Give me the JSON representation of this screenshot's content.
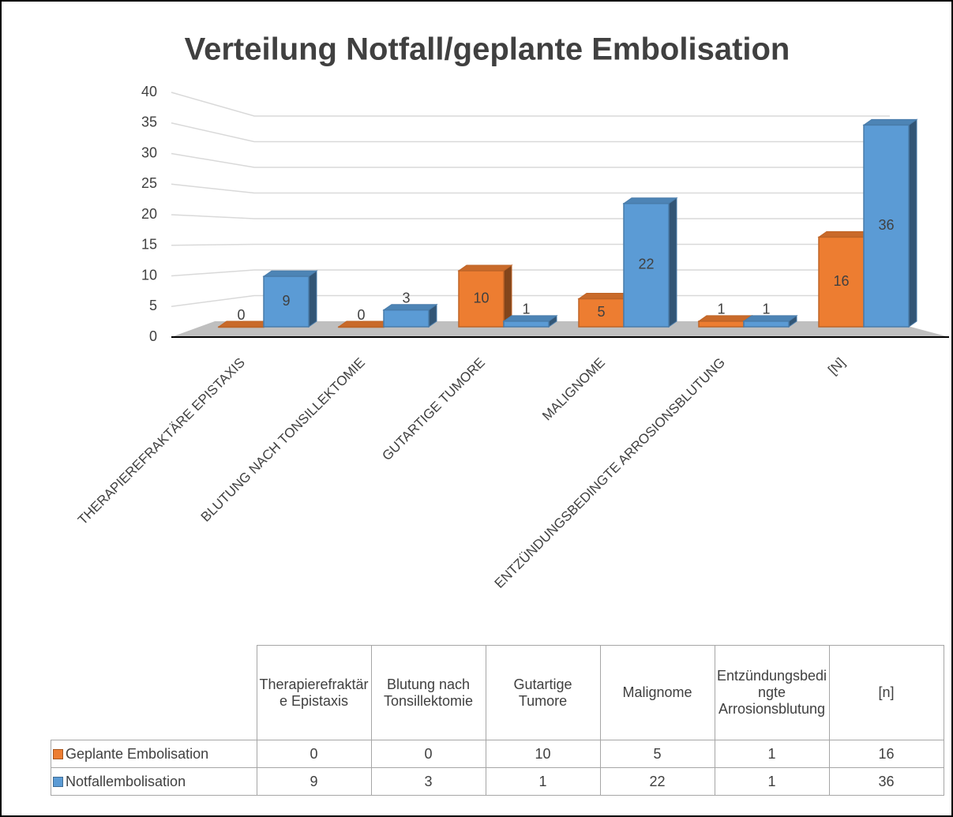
{
  "chart_data": {
    "type": "bar3d",
    "title": "Verteilung Notfall/geplante Embolisation",
    "categories": [
      "Therapierefraktäre Epistaxis",
      "Blutung nach Tonsillektomie",
      "Gutartige Tumore",
      "Malignome",
      "Entzündungsbedingte Arrosionsblutung",
      "[n]"
    ],
    "series": [
      {
        "name": "Geplante Embolisation",
        "color": "#ed7d31",
        "values": [
          0,
          0,
          10,
          5,
          1,
          16
        ]
      },
      {
        "name": "Notfallembolisation",
        "color": "#5b9bd5",
        "values": [
          9,
          3,
          1,
          22,
          1,
          36
        ]
      }
    ],
    "ylim": [
      0,
      40
    ],
    "yticks": [
      0,
      5,
      10,
      15,
      20,
      25,
      30,
      35,
      40
    ],
    "grid": true,
    "data_table": true
  }
}
